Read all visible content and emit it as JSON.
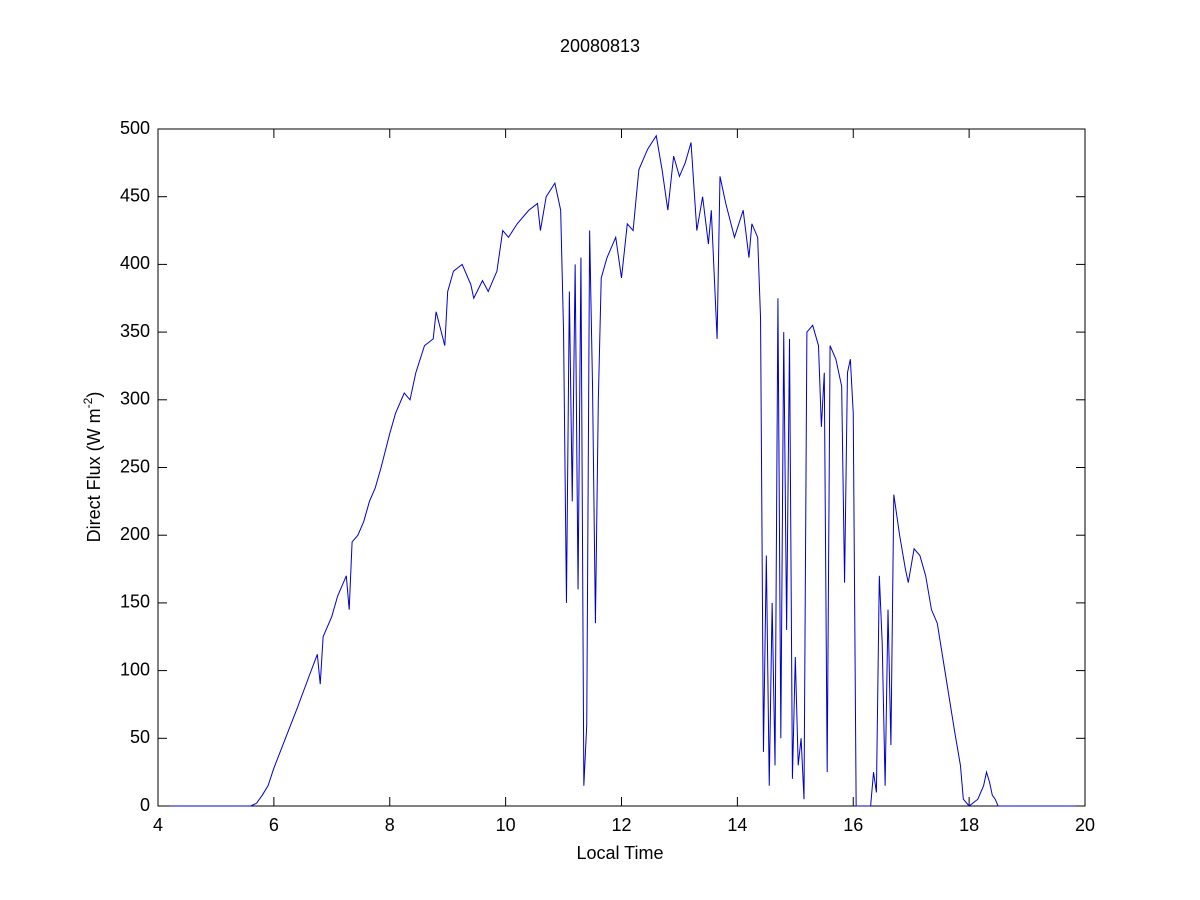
{
  "chart_data": {
    "type": "line",
    "title": "20080813",
    "xlabel": "Local Time",
    "ylabel": [
      "Direct Flux (W m",
      "-2",
      ")"
    ],
    "xlim": [
      4,
      20
    ],
    "ylim": [
      0,
      500
    ],
    "xticks": [
      4,
      6,
      8,
      10,
      12,
      14,
      16,
      18,
      20
    ],
    "yticks": [
      0,
      50,
      100,
      150,
      200,
      250,
      300,
      350,
      400,
      450,
      500
    ],
    "x": [
      4.2,
      5.6,
      5.7,
      5.8,
      5.9,
      6.0,
      6.2,
      6.4,
      6.6,
      6.75,
      6.8,
      6.85,
      7.0,
      7.1,
      7.25,
      7.3,
      7.35,
      7.45,
      7.55,
      7.65,
      7.75,
      7.85,
      8.0,
      8.1,
      8.25,
      8.35,
      8.45,
      8.6,
      8.75,
      8.8,
      8.95,
      9.0,
      9.1,
      9.25,
      9.4,
      9.45,
      9.6,
      9.7,
      9.85,
      9.95,
      10.05,
      10.2,
      10.4,
      10.55,
      10.6,
      10.7,
      10.85,
      10.95,
      11.0,
      11.05,
      11.1,
      11.15,
      11.2,
      11.25,
      11.3,
      11.35,
      11.4,
      11.45,
      11.5,
      11.55,
      11.6,
      11.65,
      11.75,
      11.9,
      12.0,
      12.1,
      12.2,
      12.3,
      12.45,
      12.6,
      12.7,
      12.8,
      12.9,
      13.0,
      13.1,
      13.2,
      13.3,
      13.4,
      13.5,
      13.55,
      13.65,
      13.7,
      13.8,
      13.95,
      14.1,
      14.2,
      14.25,
      14.35,
      14.4,
      14.45,
      14.5,
      14.55,
      14.6,
      14.65,
      14.7,
      14.75,
      14.8,
      14.85,
      14.9,
      14.95,
      15.0,
      15.05,
      15.1,
      15.15,
      15.2,
      15.3,
      15.4,
      15.45,
      15.5,
      15.55,
      15.6,
      15.7,
      15.8,
      15.85,
      15.9,
      15.95,
      16.0,
      16.05,
      16.3,
      16.35,
      16.4,
      16.45,
      16.5,
      16.55,
      16.6,
      16.65,
      16.7,
      16.8,
      16.9,
      16.95,
      17.05,
      17.15,
      17.25,
      17.35,
      17.45,
      17.6,
      17.75,
      17.85,
      17.9,
      18.0,
      18.15,
      18.25,
      18.3,
      18.35,
      18.4,
      18.45,
      18.5,
      19.85
    ],
    "series": [
      {
        "color": "#0000cc",
        "values": [
          0,
          0,
          2,
          8,
          15,
          28,
          50,
          72,
          95,
          112,
          90,
          125,
          140,
          155,
          170,
          145,
          195,
          200,
          210,
          225,
          235,
          250,
          275,
          290,
          305,
          300,
          320,
          340,
          345,
          365,
          340,
          380,
          395,
          400,
          385,
          375,
          388,
          380,
          395,
          425,
          420,
          430,
          440,
          445,
          425,
          450,
          460,
          440,
          350,
          150,
          380,
          225,
          400,
          160,
          405,
          15,
          60,
          425,
          310,
          135,
          300,
          390,
          405,
          420,
          390,
          430,
          425,
          470,
          485,
          495,
          470,
          440,
          480,
          465,
          475,
          490,
          425,
          450,
          415,
          440,
          345,
          465,
          445,
          420,
          440,
          405,
          430,
          420,
          360,
          40,
          185,
          15,
          150,
          30,
          375,
          50,
          350,
          130,
          345,
          20,
          110,
          30,
          50,
          5,
          350,
          355,
          340,
          280,
          320,
          25,
          340,
          330,
          310,
          165,
          320,
          330,
          290,
          0,
          0,
          25,
          10,
          170,
          120,
          15,
          145,
          45,
          230,
          200,
          175,
          165,
          190,
          185,
          170,
          145,
          135,
          95,
          55,
          30,
          5,
          0,
          5,
          15,
          25,
          18,
          8,
          5,
          0,
          0
        ]
      }
    ]
  }
}
